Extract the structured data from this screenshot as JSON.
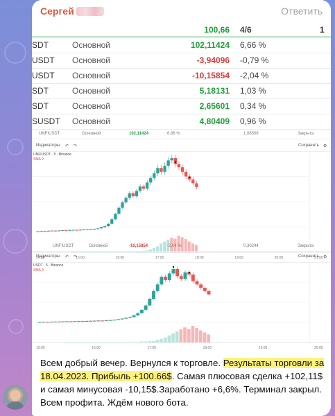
{
  "message": {
    "sender": "Сергей",
    "reply_label": "Ответить",
    "text_part1": "Всем добрый вечер. Вернулся к торговле. ",
    "text_highlight": "Результаты торговли за 18.04.2023. Прибыль +100.66$",
    "text_part2": ". Самая плюсовая сделка +102,11$ и самая минусовая -10,15$.Заработано +6,6%. Терминал закрыл. Всем профита. Ждём нового бота.",
    "highlight_color": "#fff27a",
    "sender_color": "#e2563b"
  },
  "table": {
    "header": {
      "pnl": "100,66",
      "count": "4/6"
    },
    "rows": [
      {
        "symbol": "SDT",
        "account": "Основной",
        "pnl": "102,11424",
        "pct": "6,66 %",
        "sign": "pos"
      },
      {
        "symbol": "USDT",
        "account": "Основной",
        "pnl": "-3,94096",
        "pct": "-0,79 %",
        "sign": "neg"
      },
      {
        "symbol": "USDT",
        "account": "Основной",
        "pnl": "-10,15854",
        "pct": "-2,04 %",
        "sign": "neg"
      },
      {
        "symbol": "SDT",
        "account": "Основной",
        "pnl": "5,18131",
        "pct": "1,03 %",
        "sign": "pos"
      },
      {
        "symbol": "SDT",
        "account": "Основной",
        "pnl": "2,65601",
        "pct": "0,34 %",
        "sign": "pos"
      },
      {
        "symbol": "SUSDT",
        "account": "Основной",
        "pnl": "4,80409",
        "pct": "0,96 %",
        "sign": "pos"
      }
    ]
  },
  "chart1": {
    "mini_row": {
      "symbol": "UNFIUSDT",
      "account": "Основной",
      "pnl": "102,11424",
      "pct": "6,66 %",
      "qty": "1,08506",
      "status": "Закрыта"
    },
    "toolbar": {
      "indicators": "Индикаторы",
      "save": "Сохранить"
    },
    "legend": {
      "title": "UNFIUSDT · 5 · Binance",
      "sma": "SMA 9"
    },
    "time_labels": [
      "14:00",
      "15:00",
      "16:00",
      "17:00",
      "18:00",
      "19:00",
      "20:00",
      "21:00"
    ]
  },
  "chart2": {
    "mini_row": {
      "symbol": "UNFIUSDT",
      "account": "Основной",
      "pnl": "-10,15854",
      "pct": "-2,04 %",
      "qty": "0,30244",
      "status": "Закрыта"
    },
    "toolbar": {
      "indicators": "Индикаторы",
      "save": "Сохранить"
    },
    "legend": {
      "title": "USDT · 5 · Binance",
      "sma": "SMA 9"
    },
    "time_labels": [
      "15:00",
      "16:00",
      "17:00",
      "18:00",
      "19:00",
      "20:00"
    ]
  },
  "chart_data": [
    {
      "type": "line",
      "candles": [
        2,
        2.5,
        2.2,
        2.8,
        3,
        2.6,
        3.2,
        3.5,
        3.3,
        3.8,
        4,
        3.6,
        4.2,
        4.5,
        4.3,
        4.8,
        5.2,
        6,
        7.5,
        9,
        12,
        18,
        25,
        33,
        40,
        46,
        52,
        48,
        55,
        61,
        58,
        66,
        72,
        78,
        85,
        80,
        88,
        95,
        98,
        90,
        86,
        80,
        74,
        70,
        65,
        60
      ],
      "volumes": [
        1,
        1,
        1,
        1,
        1,
        1,
        1,
        1,
        1,
        1,
        1,
        1,
        1,
        1,
        1,
        1,
        1,
        1,
        2,
        2,
        3,
        4,
        6,
        9,
        12,
        18,
        22,
        26,
        30,
        28,
        34,
        31,
        27,
        22,
        18,
        15
      ],
      "bull_color": "#26a69a",
      "bear_color": "#ef5350"
    },
    {
      "type": "line",
      "candles": [
        2,
        2.2,
        2,
        2.4,
        2.6,
        2.5,
        2.9,
        3.1,
        3,
        3.3,
        3.5,
        3.4,
        3.8,
        4,
        4.2,
        4.5,
        4.3,
        4.9,
        5.4,
        6,
        7,
        8,
        9.5,
        11,
        14,
        18,
        24,
        32,
        44,
        58,
        70,
        84,
        78,
        90,
        98,
        85,
        80,
        92,
        88,
        76,
        70,
        64,
        58,
        52
      ],
      "volumes": [
        1,
        1,
        1,
        1,
        1,
        1,
        1,
        1,
        1,
        1,
        1,
        1,
        1,
        1,
        1,
        1,
        1,
        1,
        1,
        2,
        2,
        3,
        3,
        5,
        7,
        10,
        14,
        18,
        22,
        26,
        30,
        27,
        33,
        29,
        24,
        20,
        16
      ],
      "bull_color": "#26a69a",
      "bear_color": "#ef5350"
    }
  ]
}
